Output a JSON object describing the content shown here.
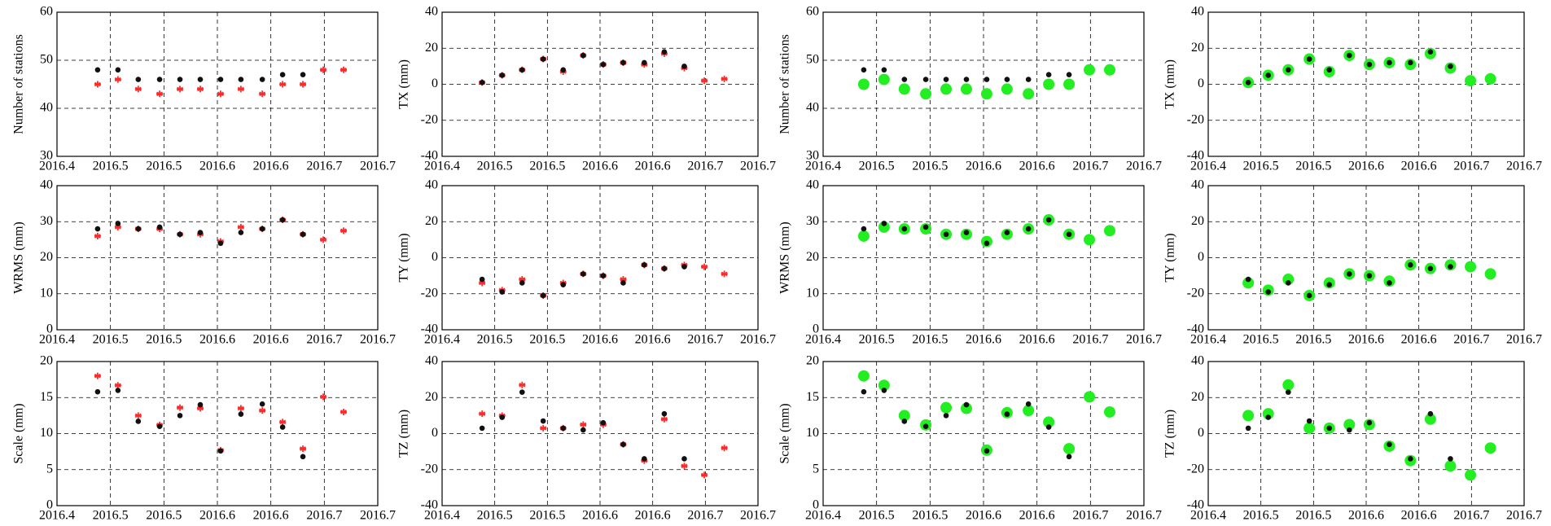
{
  "chart_data": [
    {
      "type": "scatter",
      "ylabel": "Number of stations",
      "x": [
        2016.438,
        2016.457,
        2016.476,
        2016.496,
        2016.515,
        2016.534,
        2016.553,
        2016.572,
        2016.592,
        2016.611,
        2016.63,
        2016.649,
        2016.668
      ],
      "xlim": [
        2016.4,
        2016.7
      ],
      "xticks": [
        2016.4,
        {
          "value": 2016.45,
          "label": "2016.5"
        },
        2016.5,
        {
          "value": 2016.55,
          "label": "2016.6"
        },
        2016.6,
        {
          "value": 2016.65,
          "label": "2016.7"
        },
        2016.7
      ],
      "ylim": [
        30,
        60
      ],
      "yticks": [
        30,
        40,
        50,
        60
      ],
      "grid": true,
      "series": [
        {
          "color": "#ff2a2a",
          "marker": "star",
          "values": [
            45,
            46,
            44,
            43,
            44,
            44,
            43,
            44,
            43,
            45,
            45,
            48,
            48
          ]
        },
        {
          "color": "#111111",
          "marker": "dot",
          "values": [
            48,
            48,
            46,
            46,
            46,
            46,
            46,
            46,
            46,
            47,
            47,
            null,
            null
          ]
        }
      ]
    },
    {
      "type": "scatter",
      "ylabel": "TX (mm)",
      "x": [
        2016.438,
        2016.457,
        2016.476,
        2016.496,
        2016.515,
        2016.534,
        2016.553,
        2016.572,
        2016.592,
        2016.611,
        2016.63,
        2016.649,
        2016.668
      ],
      "xlim": [
        2016.4,
        2016.7
      ],
      "xticks": [
        2016.4,
        {
          "value": 2016.45,
          "label": "2016.5"
        },
        2016.5,
        {
          "value": 2016.55,
          "label": "2016.6"
        },
        2016.6,
        {
          "value": 2016.65,
          "label": "2016.7"
        },
        2016.7
      ],
      "ylim": [
        -40,
        40
      ],
      "yticks": [
        -40,
        -20,
        0,
        20,
        40
      ],
      "grid": true,
      "series": [
        {
          "color": "#ff2a2a",
          "marker": "star",
          "values": [
            1,
            5,
            8,
            14,
            7,
            16,
            11,
            12,
            11,
            17,
            9,
            2,
            3
          ]
        },
        {
          "color": "#111111",
          "marker": "dot",
          "values": [
            1,
            5,
            8,
            14,
            8,
            16,
            11,
            12,
            12,
            18,
            10,
            null,
            null
          ]
        }
      ]
    },
    {
      "type": "scatter",
      "ylabel": "Number of stations",
      "x": [
        2016.438,
        2016.457,
        2016.476,
        2016.496,
        2016.515,
        2016.534,
        2016.553,
        2016.572,
        2016.592,
        2016.611,
        2016.63,
        2016.649,
        2016.668
      ],
      "xlim": [
        2016.4,
        2016.7
      ],
      "xticks": [
        2016.4,
        {
          "value": 2016.45,
          "label": "2016.5"
        },
        2016.5,
        {
          "value": 2016.55,
          "label": "2016.6"
        },
        2016.6,
        {
          "value": 2016.65,
          "label": "2016.7"
        },
        2016.7
      ],
      "ylim": [
        30,
        60
      ],
      "yticks": [
        30,
        40,
        50,
        60
      ],
      "grid": true,
      "series": [
        {
          "color": "#22ee22",
          "marker": "circle",
          "values": [
            45,
            46,
            44,
            43,
            44,
            44,
            43,
            44,
            43,
            45,
            45,
            48,
            48
          ]
        },
        {
          "color": "#111111",
          "marker": "dot",
          "values": [
            48,
            48,
            46,
            46,
            46,
            46,
            46,
            46,
            46,
            47,
            47,
            null,
            null
          ]
        }
      ]
    },
    {
      "type": "scatter",
      "ylabel": "TX (mm)",
      "x": [
        2016.438,
        2016.457,
        2016.476,
        2016.496,
        2016.515,
        2016.534,
        2016.553,
        2016.572,
        2016.592,
        2016.611,
        2016.63,
        2016.649,
        2016.668
      ],
      "xlim": [
        2016.4,
        2016.7
      ],
      "xticks": [
        2016.4,
        {
          "value": 2016.45,
          "label": "2016.5"
        },
        2016.5,
        {
          "value": 2016.55,
          "label": "2016.6"
        },
        2016.6,
        {
          "value": 2016.65,
          "label": "2016.7"
        },
        2016.7
      ],
      "ylim": [
        -40,
        40
      ],
      "yticks": [
        -40,
        -20,
        0,
        20,
        40
      ],
      "grid": true,
      "series": [
        {
          "color": "#22ee22",
          "marker": "circle",
          "values": [
            1,
            5,
            8,
            14,
            7,
            16,
            11,
            12,
            11,
            17,
            9,
            2,
            3
          ]
        },
        {
          "color": "#111111",
          "marker": "dot",
          "values": [
            1,
            5,
            8,
            14,
            8,
            16,
            11,
            12,
            12,
            18,
            10,
            null,
            null
          ]
        }
      ]
    },
    {
      "type": "scatter",
      "ylabel": "WRMS (mm)",
      "x": [
        2016.438,
        2016.457,
        2016.476,
        2016.496,
        2016.515,
        2016.534,
        2016.553,
        2016.572,
        2016.592,
        2016.611,
        2016.63,
        2016.649,
        2016.668
      ],
      "xlim": [
        2016.4,
        2016.7
      ],
      "xticks": [
        2016.4,
        {
          "value": 2016.45,
          "label": "2016.5"
        },
        2016.5,
        {
          "value": 2016.55,
          "label": "2016.6"
        },
        2016.6,
        {
          "value": 2016.65,
          "label": "2016.7"
        },
        2016.7
      ],
      "ylim": [
        0,
        40
      ],
      "yticks": [
        0,
        10,
        20,
        30,
        40
      ],
      "grid": true,
      "series": [
        {
          "color": "#ff2a2a",
          "marker": "star",
          "values": [
            26,
            28.5,
            28,
            28,
            26.5,
            26.5,
            24.5,
            28.5,
            28,
            30.5,
            26.5,
            25,
            27.5
          ]
        },
        {
          "color": "#111111",
          "marker": "dot",
          "values": [
            28,
            29.5,
            28,
            28.5,
            26.5,
            27,
            24,
            27,
            28,
            30.5,
            26.5,
            null,
            null
          ]
        }
      ]
    },
    {
      "type": "scatter",
      "ylabel": "TY (mm)",
      "x": [
        2016.438,
        2016.457,
        2016.476,
        2016.496,
        2016.515,
        2016.534,
        2016.553,
        2016.572,
        2016.592,
        2016.611,
        2016.63,
        2016.649,
        2016.668
      ],
      "xlim": [
        2016.4,
        2016.7
      ],
      "xticks": [
        2016.4,
        {
          "value": 2016.45,
          "label": "2016.5"
        },
        2016.5,
        {
          "value": 2016.55,
          "label": "2016.6"
        },
        2016.6,
        {
          "value": 2016.65,
          "label": "2016.7"
        },
        2016.7
      ],
      "ylim": [
        -40,
        40
      ],
      "yticks": [
        -40,
        -20,
        0,
        20,
        40
      ],
      "grid": true,
      "series": [
        {
          "color": "#ff2a2a",
          "marker": "star",
          "values": [
            -14,
            -18,
            -12,
            -21,
            -14,
            -9,
            -10,
            -12,
            -4,
            -6,
            -4,
            -5,
            -9
          ]
        },
        {
          "color": "#111111",
          "marker": "dot",
          "values": [
            -12,
            -19,
            -14,
            -21,
            -15,
            -9,
            -10,
            -14,
            -4,
            -6,
            -5,
            null,
            null
          ]
        }
      ]
    },
    {
      "type": "scatter",
      "ylabel": "WRMS (mm)",
      "x": [
        2016.438,
        2016.457,
        2016.476,
        2016.496,
        2016.515,
        2016.534,
        2016.553,
        2016.572,
        2016.592,
        2016.611,
        2016.63,
        2016.649,
        2016.668
      ],
      "xlim": [
        2016.4,
        2016.7
      ],
      "xticks": [
        2016.4,
        {
          "value": 2016.45,
          "label": "2016.5"
        },
        2016.5,
        {
          "value": 2016.55,
          "label": "2016.6"
        },
        2016.6,
        {
          "value": 2016.65,
          "label": "2016.7"
        },
        2016.7
      ],
      "ylim": [
        0,
        40
      ],
      "yticks": [
        0,
        10,
        20,
        30,
        40
      ],
      "grid": true,
      "series": [
        {
          "color": "#22ee22",
          "marker": "circle",
          "values": [
            26,
            28.5,
            28,
            28,
            26.5,
            26.5,
            24.5,
            26.5,
            28,
            30.5,
            26.5,
            25,
            27.5
          ]
        },
        {
          "color": "#111111",
          "marker": "dot",
          "values": [
            28,
            29.5,
            28,
            28.5,
            26.5,
            27,
            24,
            27,
            28,
            30.5,
            26.5,
            null,
            null
          ]
        }
      ]
    },
    {
      "type": "scatter",
      "ylabel": "TY (mm)",
      "x": [
        2016.438,
        2016.457,
        2016.476,
        2016.496,
        2016.515,
        2016.534,
        2016.553,
        2016.572,
        2016.592,
        2016.611,
        2016.63,
        2016.649,
        2016.668
      ],
      "xlim": [
        2016.4,
        2016.7
      ],
      "xticks": [
        2016.4,
        {
          "value": 2016.45,
          "label": "2016.5"
        },
        2016.5,
        {
          "value": 2016.55,
          "label": "2016.6"
        },
        2016.6,
        {
          "value": 2016.65,
          "label": "2016.7"
        },
        2016.7
      ],
      "ylim": [
        -40,
        40
      ],
      "yticks": [
        -40,
        -20,
        0,
        20,
        40
      ],
      "grid": true,
      "series": [
        {
          "color": "#22ee22",
          "marker": "circle",
          "values": [
            -14,
            -18,
            -12,
            -21,
            -14,
            -9,
            -10,
            -13,
            -4,
            -6,
            -4,
            -5,
            -9
          ]
        },
        {
          "color": "#111111",
          "marker": "dot",
          "values": [
            -12,
            -19,
            -14,
            -21,
            -15,
            -9,
            -10,
            -14,
            -4,
            -6,
            -5,
            null,
            null
          ]
        }
      ]
    },
    {
      "type": "scatter",
      "ylabel": "Scale (mm)",
      "x": [
        2016.438,
        2016.457,
        2016.476,
        2016.496,
        2016.515,
        2016.534,
        2016.553,
        2016.572,
        2016.592,
        2016.611,
        2016.63,
        2016.649,
        2016.668
      ],
      "xlim": [
        2016.4,
        2016.7
      ],
      "xticks": [
        2016.4,
        {
          "value": 2016.45,
          "label": "2016.5"
        },
        2016.5,
        {
          "value": 2016.55,
          "label": "2016.6"
        },
        2016.6,
        {
          "value": 2016.65,
          "label": "2016.7"
        },
        2016.7
      ],
      "ylim": [
        0,
        20
      ],
      "yticks": [
        0,
        5,
        10,
        15,
        20
      ],
      "grid": true,
      "series": [
        {
          "color": "#ff2a2a",
          "marker": "star",
          "values": [
            18,
            16.7,
            12.5,
            11.2,
            13.6,
            13.5,
            7.7,
            13.5,
            13.2,
            11.6,
            7.9,
            15.1,
            13
          ]
        },
        {
          "color": "#111111",
          "marker": "dot",
          "values": [
            15.8,
            16,
            11.7,
            11,
            12.5,
            14,
            7.6,
            12.7,
            14.1,
            10.9,
            6.8,
            null,
            null
          ]
        }
      ]
    },
    {
      "type": "scatter",
      "ylabel": "TZ (mm)",
      "x": [
        2016.438,
        2016.457,
        2016.476,
        2016.496,
        2016.515,
        2016.534,
        2016.553,
        2016.572,
        2016.592,
        2016.611,
        2016.63,
        2016.649,
        2016.668
      ],
      "xlim": [
        2016.4,
        2016.7
      ],
      "xticks": [
        2016.4,
        {
          "value": 2016.45,
          "label": "2016.5"
        },
        2016.5,
        {
          "value": 2016.55,
          "label": "2016.6"
        },
        2016.6,
        {
          "value": 2016.65,
          "label": "2016.7"
        },
        2016.7
      ],
      "ylim": [
        -40,
        40
      ],
      "yticks": [
        -40,
        -20,
        0,
        20,
        40
      ],
      "grid": true,
      "series": [
        {
          "color": "#ff2a2a",
          "marker": "star",
          "values": [
            11,
            10,
            27,
            3,
            3,
            5,
            5,
            -6,
            -15,
            8,
            -18,
            -23,
            -8
          ]
        },
        {
          "color": "#111111",
          "marker": "dot",
          "values": [
            3,
            9,
            23,
            7,
            3,
            2,
            6,
            -6,
            -14,
            11,
            -14,
            null,
            null
          ]
        }
      ]
    },
    {
      "type": "scatter",
      "ylabel": "Scale (mm)",
      "x": [
        2016.438,
        2016.457,
        2016.476,
        2016.496,
        2016.515,
        2016.534,
        2016.553,
        2016.572,
        2016.592,
        2016.611,
        2016.63,
        2016.649,
        2016.668
      ],
      "xlim": [
        2016.4,
        2016.7
      ],
      "xticks": [
        2016.4,
        {
          "value": 2016.45,
          "label": "2016.5"
        },
        2016.5,
        {
          "value": 2016.55,
          "label": "2016.6"
        },
        2016.6,
        {
          "value": 2016.65,
          "label": "2016.7"
        },
        2016.7
      ],
      "ylim": [
        0,
        20
      ],
      "yticks": [
        0,
        5,
        10,
        15,
        20
      ],
      "grid": true,
      "series": [
        {
          "color": "#22ee22",
          "marker": "circle",
          "values": [
            18,
            16.7,
            12.5,
            11.2,
            13.6,
            13.5,
            7.7,
            12.9,
            13.2,
            11.6,
            7.9,
            15.1,
            13
          ]
        },
        {
          "color": "#111111",
          "marker": "dot",
          "values": [
            15.8,
            16,
            11.7,
            11,
            12.5,
            14,
            7.6,
            12.7,
            14.1,
            10.9,
            6.8,
            null,
            null
          ]
        }
      ]
    },
    {
      "type": "scatter",
      "ylabel": "TZ (mm)",
      "x": [
        2016.438,
        2016.457,
        2016.476,
        2016.496,
        2016.515,
        2016.534,
        2016.553,
        2016.572,
        2016.592,
        2016.611,
        2016.63,
        2016.649,
        2016.668
      ],
      "xlim": [
        2016.4,
        2016.7
      ],
      "xticks": [
        2016.4,
        {
          "value": 2016.45,
          "label": "2016.5"
        },
        2016.5,
        {
          "value": 2016.55,
          "label": "2016.6"
        },
        2016.6,
        {
          "value": 2016.65,
          "label": "2016.7"
        },
        2016.7
      ],
      "ylim": [
        -40,
        40
      ],
      "yticks": [
        -40,
        -20,
        0,
        20,
        40
      ],
      "grid": true,
      "series": [
        {
          "color": "#22ee22",
          "marker": "circle",
          "values": [
            10,
            11,
            27,
            3,
            3,
            5,
            5,
            -7,
            -15,
            8,
            -18,
            -23,
            -8
          ]
        },
        {
          "color": "#111111",
          "marker": "dot",
          "values": [
            3,
            9,
            23,
            7,
            3,
            2,
            6,
            -6,
            -14,
            11,
            -14,
            null,
            null
          ]
        }
      ]
    }
  ]
}
